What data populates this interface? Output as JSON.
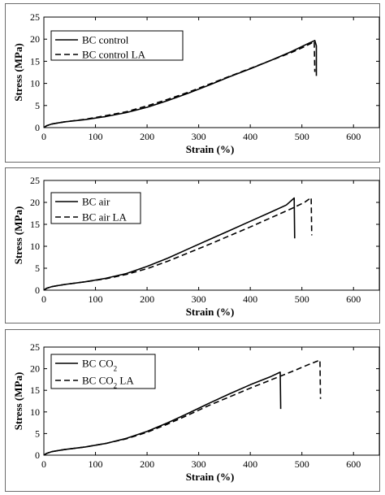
{
  "chart_data": [
    {
      "type": "line",
      "xlabel": "Strain (%)",
      "ylabel": "Stress (MPa)",
      "xlim": [
        0,
        650
      ],
      "ylim": [
        0,
        25
      ],
      "xticks": [
        "0",
        "100",
        "200",
        "300",
        "400",
        "500",
        "600"
      ],
      "yticks": [
        "0",
        "5",
        "10",
        "15",
        "20",
        "25"
      ],
      "legend_position": "top-left",
      "series": [
        {
          "name": "BC control",
          "line_style": "solid",
          "points": [
            [
              0,
              0
            ],
            [
              5,
              0.4
            ],
            [
              15,
              0.8
            ],
            [
              40,
              1.3
            ],
            [
              80,
              1.8
            ],
            [
              120,
              2.5
            ],
            [
              160,
              3.4
            ],
            [
              200,
              4.6
            ],
            [
              240,
              6.1
            ],
            [
              280,
              7.8
            ],
            [
              320,
              9.6
            ],
            [
              360,
              11.5
            ],
            [
              400,
              13.3
            ],
            [
              440,
              15.2
            ],
            [
              480,
              17.2
            ],
            [
              510,
              18.9
            ],
            [
              525,
              19.7
            ],
            [
              528,
              18.5
            ],
            [
              528,
              11.7
            ]
          ]
        },
        {
          "name": "BC control LA",
          "line_style": "dashed",
          "points": [
            [
              0,
              0
            ],
            [
              5,
              0.4
            ],
            [
              15,
              0.8
            ],
            [
              40,
              1.3
            ],
            [
              80,
              1.9
            ],
            [
              120,
              2.7
            ],
            [
              160,
              3.6
            ],
            [
              200,
              4.9
            ],
            [
              240,
              6.4
            ],
            [
              280,
              8.0
            ],
            [
              320,
              9.8
            ],
            [
              360,
              11.6
            ],
            [
              400,
              13.4
            ],
            [
              440,
              15.2
            ],
            [
              480,
              17.0
            ],
            [
              505,
              18.3
            ],
            [
              520,
              19.2
            ],
            [
              524,
              19.5
            ],
            [
              525,
              12.6
            ]
          ]
        }
      ]
    },
    {
      "type": "line",
      "xlabel": "Strain (%)",
      "ylabel": "Stress (MPa)",
      "xlim": [
        0,
        650
      ],
      "ylim": [
        0,
        25
      ],
      "xticks": [
        "0",
        "100",
        "200",
        "300",
        "400",
        "500",
        "600"
      ],
      "yticks": [
        "0",
        "5",
        "10",
        "15",
        "20",
        "25"
      ],
      "legend_position": "top-left",
      "series": [
        {
          "name": "BC air",
          "line_style": "solid",
          "points": [
            [
              0,
              0
            ],
            [
              5,
              0.4
            ],
            [
              15,
              0.8
            ],
            [
              40,
              1.3
            ],
            [
              80,
              1.9
            ],
            [
              120,
              2.7
            ],
            [
              160,
              3.8
            ],
            [
              200,
              5.4
            ],
            [
              240,
              7.3
            ],
            [
              280,
              9.4
            ],
            [
              320,
              11.5
            ],
            [
              360,
              13.6
            ],
            [
              400,
              15.7
            ],
            [
              440,
              17.8
            ],
            [
              470,
              19.4
            ],
            [
              485,
              21.0
            ],
            [
              486,
              11.8
            ]
          ]
        },
        {
          "name": "BC air LA",
          "line_style": "dashed",
          "points": [
            [
              0,
              0
            ],
            [
              5,
              0.4
            ],
            [
              15,
              0.8
            ],
            [
              40,
              1.3
            ],
            [
              80,
              1.9
            ],
            [
              120,
              2.6
            ],
            [
              160,
              3.6
            ],
            [
              200,
              4.9
            ],
            [
              240,
              6.6
            ],
            [
              280,
              8.5
            ],
            [
              320,
              10.4
            ],
            [
              360,
              12.4
            ],
            [
              400,
              14.4
            ],
            [
              440,
              16.5
            ],
            [
              480,
              18.6
            ],
            [
              505,
              20.0
            ],
            [
              518,
              21.1
            ],
            [
              519,
              12.5
            ]
          ]
        }
      ]
    },
    {
      "type": "line",
      "xlabel": "Strain (%)",
      "ylabel": "Stress (MPa)",
      "xlim": [
        0,
        650
      ],
      "ylim": [
        0,
        25
      ],
      "xticks": [
        "0",
        "100",
        "200",
        "300",
        "400",
        "500",
        "600"
      ],
      "yticks": [
        "0",
        "5",
        "10",
        "15",
        "20",
        "25"
      ],
      "legend_position": "top-left",
      "series": [
        {
          "name": "BC CO2",
          "line_style": "solid",
          "points": [
            [
              0,
              0
            ],
            [
              5,
              0.4
            ],
            [
              15,
              0.8
            ],
            [
              40,
              1.3
            ],
            [
              80,
              1.9
            ],
            [
              120,
              2.7
            ],
            [
              160,
              3.9
            ],
            [
              200,
              5.5
            ],
            [
              240,
              7.5
            ],
            [
              280,
              9.7
            ],
            [
              320,
              12.0
            ],
            [
              360,
              14.2
            ],
            [
              400,
              16.3
            ],
            [
              440,
              18.2
            ],
            [
              458,
              19.2
            ],
            [
              459,
              10.7
            ]
          ]
        },
        {
          "name": "BC CO2 LA",
          "line_style": "dashed",
          "points": [
            [
              0,
              0
            ],
            [
              5,
              0.4
            ],
            [
              15,
              0.8
            ],
            [
              40,
              1.3
            ],
            [
              80,
              1.9
            ],
            [
              120,
              2.7
            ],
            [
              160,
              3.8
            ],
            [
              200,
              5.3
            ],
            [
              240,
              7.2
            ],
            [
              280,
              9.3
            ],
            [
              320,
              11.5
            ],
            [
              360,
              13.5
            ],
            [
              400,
              15.5
            ],
            [
              440,
              17.4
            ],
            [
              480,
              19.3
            ],
            [
              510,
              20.8
            ],
            [
              535,
              22.0
            ],
            [
              536,
              13.0
            ]
          ]
        }
      ]
    }
  ]
}
